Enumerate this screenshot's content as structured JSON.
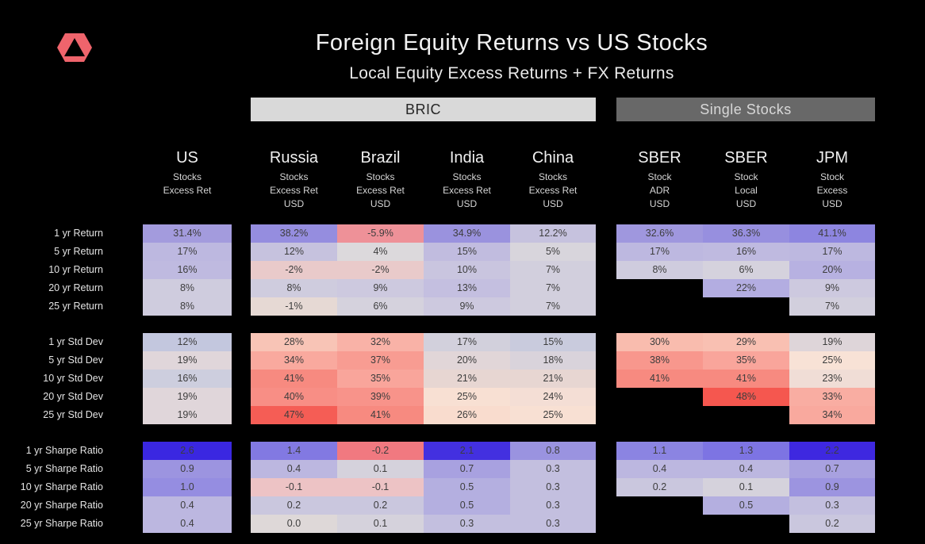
{
  "colors": {
    "background": "#000000",
    "logo": "#ef646c",
    "bric_bar_bg": "#d9d9d9",
    "bric_bar_text": "#262626",
    "single_bar_bg": "#686868",
    "single_bar_text": "#d8d8d8"
  },
  "chart_data": {
    "type": "heatmap",
    "title": "Foreign Equity Returns vs US Stocks",
    "subtitle": "Local Equity Excess Returns + FX Returns",
    "legend": "cell color encodes value: blue/purple = favorable, white = neutral, red = unfavorable",
    "column_groups": [
      {
        "label": "BRIC",
        "columns": [
          "russia",
          "brazil",
          "india",
          "china"
        ]
      },
      {
        "label": "Single Stocks",
        "columns": [
          "sber_adr",
          "sber_local",
          "jpm"
        ]
      }
    ],
    "columns": [
      {
        "id": "us",
        "name": "US",
        "sub": [
          "Stocks",
          "Excess Ret"
        ]
      },
      {
        "id": "russia",
        "name": "Russia",
        "sub": [
          "Stocks",
          "Excess Ret",
          "USD"
        ]
      },
      {
        "id": "brazil",
        "name": "Brazil",
        "sub": [
          "Stocks",
          "Excess Ret",
          "USD"
        ]
      },
      {
        "id": "india",
        "name": "India",
        "sub": [
          "Stocks",
          "Excess Ret",
          "USD"
        ]
      },
      {
        "id": "china",
        "name": "China",
        "sub": [
          "Stocks",
          "Excess Ret",
          "USD"
        ]
      },
      {
        "id": "sber_adr",
        "name": "SBER",
        "sub": [
          "Stock",
          "ADR",
          "USD"
        ]
      },
      {
        "id": "sber_local",
        "name": "SBER",
        "sub": [
          "Stock",
          "Local",
          "USD"
        ]
      },
      {
        "id": "jpm",
        "name": "JPM",
        "sub": [
          "Stock",
          "Excess",
          "USD"
        ]
      }
    ],
    "sections": [
      {
        "name": "Returns",
        "rows": [
          {
            "label": "1 yr Return",
            "cells": [
              {
                "v": "31.4%",
                "c": "#a39bdd"
              },
              {
                "v": "38.2%",
                "c": "#958ddf"
              },
              {
                "v": "-5.9%",
                "c": "#ee9198"
              },
              {
                "v": "34.9%",
                "c": "#9a92de"
              },
              {
                "v": "12.2%",
                "c": "#c6c2de"
              },
              {
                "v": "32.6%",
                "c": "#9f97de"
              },
              {
                "v": "36.3%",
                "c": "#978fdf"
              },
              {
                "v": "41.1%",
                "c": "#8d85e0"
              }
            ]
          },
          {
            "label": "5 yr Return",
            "cells": [
              {
                "v": "17%",
                "c": "#bdb8e0"
              },
              {
                "v": "12%",
                "c": "#c6c2de"
              },
              {
                "v": "4%",
                "c": "#dcd9dc"
              },
              {
                "v": "15%",
                "c": "#c1bcdf"
              },
              {
                "v": "5%",
                "c": "#d8d5dc"
              },
              {
                "v": "17%",
                "c": "#bdb8e0"
              },
              {
                "v": "16%",
                "c": "#bfbae0"
              },
              {
                "v": "17%",
                "c": "#bdb8e0"
              }
            ]
          },
          {
            "label": "10 yr Return",
            "cells": [
              {
                "v": "16%",
                "c": "#bfbae0"
              },
              {
                "v": "-2%",
                "c": "#e9caca"
              },
              {
                "v": "-2%",
                "c": "#e9caca"
              },
              {
                "v": "10%",
                "c": "#c9c5df"
              },
              {
                "v": "7%",
                "c": "#d2cfdd"
              },
              {
                "v": "8%",
                "c": "#cfccde"
              },
              {
                "v": "6%",
                "c": "#d5d2dd"
              },
              {
                "v": "20%",
                "c": "#b7b1e1"
              }
            ]
          },
          {
            "label": "20 yr Return",
            "cells": [
              {
                "v": "8%",
                "c": "#cfccde"
              },
              {
                "v": "8%",
                "c": "#cfccde"
              },
              {
                "v": "9%",
                "c": "#cdc9df"
              },
              {
                "v": "13%",
                "c": "#c4bfe0"
              },
              {
                "v": "7%",
                "c": "#d2cfdd"
              },
              null,
              {
                "v": "22%",
                "c": "#b3ade1"
              },
              {
                "v": "9%",
                "c": "#cdc9df"
              }
            ]
          },
          {
            "label": "25 yr Return",
            "cells": [
              {
                "v": "8%",
                "c": "#cfccde"
              },
              {
                "v": "-1%",
                "c": "#e6d9d4"
              },
              {
                "v": "6%",
                "c": "#d5d2dd"
              },
              {
                "v": "9%",
                "c": "#cdc9df"
              },
              {
                "v": "7%",
                "c": "#d2cfdd"
              },
              null,
              null,
              {
                "v": "7%",
                "c": "#d2cfdd"
              }
            ]
          }
        ]
      },
      {
        "name": "Std Dev",
        "rows": [
          {
            "label": "1 yr Std Dev",
            "cells": [
              {
                "v": "12%",
                "c": "#c3c7de"
              },
              {
                "v": "28%",
                "c": "#f8c4b6"
              },
              {
                "v": "32%",
                "c": "#f9b2a7"
              },
              {
                "v": "17%",
                "c": "#d2d0dc"
              },
              {
                "v": "15%",
                "c": "#c9cbdd"
              },
              {
                "v": "30%",
                "c": "#f9bcae"
              },
              {
                "v": "29%",
                "c": "#f9c0b2"
              },
              {
                "v": "19%",
                "c": "#ded5d9"
              }
            ]
          },
          {
            "label": "5 yr Std Dev",
            "cells": [
              {
                "v": "19%",
                "c": "#e0d6da"
              },
              {
                "v": "34%",
                "c": "#f9a99e"
              },
              {
                "v": "37%",
                "c": "#f89c92"
              },
              {
                "v": "20%",
                "c": "#e1d6d8"
              },
              {
                "v": "18%",
                "c": "#d9d3db"
              },
              {
                "v": "38%",
                "c": "#f8978d"
              },
              {
                "v": "35%",
                "c": "#f9a59b"
              },
              {
                "v": "25%",
                "c": "#f8e2d6"
              }
            ]
          },
          {
            "label": "10 yr Std Dev",
            "cells": [
              {
                "v": "16%",
                "c": "#cdcede"
              },
              {
                "v": "41%",
                "c": "#f78a80"
              },
              {
                "v": "35%",
                "c": "#f9a59b"
              },
              {
                "v": "21%",
                "c": "#e7d6d2"
              },
              {
                "v": "21%",
                "c": "#e7d6d2"
              },
              {
                "v": "41%",
                "c": "#f78a80"
              },
              {
                "v": "41%",
                "c": "#f78a80"
              },
              {
                "v": "23%",
                "c": "#f0ddd6"
              }
            ]
          },
          {
            "label": "20 yr Std Dev",
            "cells": [
              {
                "v": "19%",
                "c": "#e0d6da"
              },
              {
                "v": "40%",
                "c": "#f88e85"
              },
              {
                "v": "39%",
                "c": "#f8938a"
              },
              {
                "v": "25%",
                "c": "#f8e0d3"
              },
              {
                "v": "24%",
                "c": "#f4ded5"
              },
              null,
              {
                "v": "48%",
                "c": "#f5574f"
              },
              {
                "v": "33%",
                "c": "#f9ada2"
              }
            ]
          },
          {
            "label": "25 yr Std Dev",
            "cells": [
              {
                "v": "19%",
                "c": "#e0d6da"
              },
              {
                "v": "47%",
                "c": "#f55d55"
              },
              {
                "v": "41%",
                "c": "#f78a80"
              },
              {
                "v": "26%",
                "c": "#f9dcce"
              },
              {
                "v": "25%",
                "c": "#f8e0d3"
              },
              null,
              null,
              {
                "v": "34%",
                "c": "#f9a99e"
              }
            ]
          }
        ]
      },
      {
        "name": "Sharpe Ratio",
        "rows": [
          {
            "label": "1 yr Sharpe Ratio",
            "cells": [
              {
                "v": "2.6",
                "c": "#3a27e1"
              },
              {
                "v": "1.4",
                "c": "#8279e2"
              },
              {
                "v": "-0.2",
                "c": "#f17980"
              },
              {
                "v": "2.1",
                "c": "#4330e0"
              },
              {
                "v": "0.8",
                "c": "#9a93e0"
              },
              {
                "v": "1.1",
                "c": "#8b84e2"
              },
              {
                "v": "1.3",
                "c": "#7d74e3"
              },
              {
                "v": "2.2",
                "c": "#3e28e0"
              }
            ]
          },
          {
            "label": "5 yr Sharpe Ratio",
            "cells": [
              {
                "v": "0.9",
                "c": "#9c94e0"
              },
              {
                "v": "0.4",
                "c": "#bcb7e0"
              },
              {
                "v": "0.1",
                "c": "#d5d2dc"
              },
              {
                "v": "0.7",
                "c": "#a8a1e0"
              },
              {
                "v": "0.3",
                "c": "#c3bfdf"
              },
              {
                "v": "0.4",
                "c": "#bcb7e0"
              },
              {
                "v": "0.4",
                "c": "#bcb7e0"
              },
              {
                "v": "0.7",
                "c": "#a8a1e0"
              }
            ]
          },
          {
            "label": "10 yr Sharpe Ratio",
            "cells": [
              {
                "v": "1.0",
                "c": "#958de1"
              },
              {
                "v": "-0.1",
                "c": "#edc3c5"
              },
              {
                "v": "-0.1",
                "c": "#edc3c5"
              },
              {
                "v": "0.5",
                "c": "#b4afe0"
              },
              {
                "v": "0.3",
                "c": "#c3bfdf"
              },
              {
                "v": "0.2",
                "c": "#cac7de"
              },
              {
                "v": "0.1",
                "c": "#d5d2dc"
              },
              {
                "v": "0.9",
                "c": "#9c94e0"
              }
            ]
          },
          {
            "label": "20 yr Sharpe Ratio",
            "cells": [
              {
                "v": "0.4",
                "c": "#bcb7e0"
              },
              {
                "v": "0.2",
                "c": "#cac7de"
              },
              {
                "v": "0.2",
                "c": "#cac7de"
              },
              {
                "v": "0.5",
                "c": "#b4afe0"
              },
              {
                "v": "0.3",
                "c": "#c3bfdf"
              },
              null,
              {
                "v": "0.5",
                "c": "#b4afe0"
              },
              {
                "v": "0.3",
                "c": "#c3bfdf"
              }
            ]
          },
          {
            "label": "25 yr Sharpe Ratio",
            "cells": [
              {
                "v": "0.4",
                "c": "#bcb7e0"
              },
              {
                "v": "0.0",
                "c": "#ded8d8"
              },
              {
                "v": "0.1",
                "c": "#d5d2dc"
              },
              {
                "v": "0.3",
                "c": "#c3bfdf"
              },
              {
                "v": "0.3",
                "c": "#c3bfdf"
              },
              null,
              null,
              {
                "v": "0.2",
                "c": "#cac7de"
              }
            ]
          }
        ]
      }
    ]
  }
}
